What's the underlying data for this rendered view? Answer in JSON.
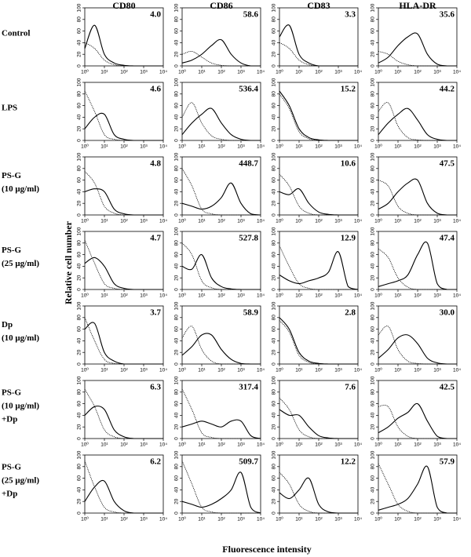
{
  "columns": [
    "CD80",
    "CD86",
    "CD83",
    "HLA-DR"
  ],
  "rows": [
    [
      "Control"
    ],
    [
      "LPS"
    ],
    [
      "PS-G",
      "(10 μg/ml)"
    ],
    [
      "PS-G",
      "(25 μg/ml)"
    ],
    [
      "Dp",
      "(10 μg/ml)"
    ],
    [
      "PS-G",
      "(10 μg/ml)",
      "+Dp"
    ],
    [
      "PS-G",
      "(25 μg/ml)",
      "+Dp"
    ]
  ],
  "y_label": "Relative cell number",
  "x_label": "Fluorescence intensity",
  "axes": {
    "log_x": true,
    "x": [
      1,
      3.16,
      10,
      31.6,
      100,
      316,
      1000,
      3160,
      10000
    ],
    "xlim": [
      1,
      10000
    ],
    "xticks": [
      {
        "value": 1,
        "label": "10⁰"
      },
      {
        "value": 10,
        "label": "10¹"
      },
      {
        "value": 100,
        "label": "10²"
      },
      {
        "value": 1000,
        "label": "10³"
      },
      {
        "value": 10000,
        "label": "10⁴"
      }
    ],
    "ylim": [
      0,
      100
    ],
    "yticks": [
      0,
      20,
      40,
      60,
      80,
      100
    ]
  },
  "chart_data": [
    {
      "type": "line",
      "annotation": "4.0",
      "series": [
        {
          "color": "#000",
          "dash": "solid",
          "values": [
            30,
            70,
            20,
            5,
            1,
            0,
            0,
            0,
            0
          ]
        },
        {
          "color": "#000",
          "dash": "dotted",
          "values": [
            40,
            30,
            10,
            2,
            0,
            0,
            0,
            0,
            0
          ]
        }
      ]
    },
    {
      "type": "line",
      "annotation": "58.6",
      "series": [
        {
          "color": "#000",
          "dash": "solid",
          "values": [
            5,
            10,
            20,
            35,
            45,
            20,
            5,
            0,
            0
          ]
        },
        {
          "color": "#000",
          "dash": "dotted",
          "values": [
            20,
            25,
            15,
            5,
            1,
            0,
            0,
            0,
            0
          ]
        }
      ]
    },
    {
      "type": "line",
      "annotation": "3.3",
      "series": [
        {
          "color": "#000",
          "dash": "solid",
          "values": [
            50,
            70,
            20,
            5,
            0,
            0,
            0,
            0,
            0
          ]
        },
        {
          "color": "#000",
          "dash": "dotted",
          "values": [
            40,
            30,
            10,
            2,
            0,
            0,
            0,
            0,
            0
          ]
        }
      ]
    },
    {
      "type": "line",
      "annotation": "35.6",
      "series": [
        {
          "color": "#000",
          "dash": "solid",
          "values": [
            5,
            15,
            35,
            50,
            55,
            20,
            3,
            0,
            0
          ]
        },
        {
          "color": "#000",
          "dash": "dotted",
          "values": [
            25,
            20,
            8,
            2,
            0,
            0,
            0,
            0,
            0
          ]
        }
      ]
    },
    {
      "type": "line",
      "annotation": "4.6",
      "series": [
        {
          "color": "#000",
          "dash": "solid",
          "values": [
            20,
            40,
            45,
            10,
            2,
            0,
            0,
            0,
            0
          ]
        },
        {
          "color": "#000",
          "dash": "dotted",
          "values": [
            85,
            50,
            10,
            2,
            0,
            0,
            0,
            0,
            0
          ]
        }
      ]
    },
    {
      "type": "line",
      "annotation": "536.4",
      "series": [
        {
          "color": "#000",
          "dash": "solid",
          "values": [
            10,
            30,
            45,
            55,
            30,
            10,
            2,
            0,
            0
          ]
        },
        {
          "color": "#000",
          "dash": "dotted",
          "values": [
            40,
            65,
            30,
            8,
            2,
            0,
            0,
            0,
            0
          ]
        }
      ]
    },
    {
      "type": "line",
      "annotation": "15.2",
      "series": [
        {
          "color": "#000",
          "dash": "solid",
          "values": [
            85,
            60,
            20,
            5,
            1,
            0,
            0,
            0,
            0
          ]
        },
        {
          "color": "#000",
          "dash": "dotted",
          "values": [
            80,
            55,
            15,
            3,
            0,
            0,
            0,
            0,
            0
          ]
        }
      ]
    },
    {
      "type": "line",
      "annotation": "44.2",
      "series": [
        {
          "color": "#000",
          "dash": "solid",
          "values": [
            10,
            30,
            45,
            55,
            35,
            10,
            2,
            0,
            0
          ]
        },
        {
          "color": "#000",
          "dash": "dotted",
          "values": [
            50,
            65,
            25,
            5,
            1,
            0,
            0,
            0,
            0
          ]
        }
      ]
    },
    {
      "type": "line",
      "annotation": "4.8",
      "series": [
        {
          "color": "#000",
          "dash": "solid",
          "values": [
            40,
            45,
            40,
            10,
            2,
            0,
            0,
            0,
            0
          ]
        },
        {
          "color": "#000",
          "dash": "dotted",
          "values": [
            75,
            55,
            15,
            3,
            0,
            0,
            0,
            0,
            0
          ]
        }
      ]
    },
    {
      "type": "line",
      "annotation": "448.7",
      "series": [
        {
          "color": "#000",
          "dash": "solid",
          "values": [
            20,
            15,
            10,
            15,
            30,
            55,
            20,
            2,
            0
          ]
        },
        {
          "color": "#000",
          "dash": "dotted",
          "values": [
            80,
            50,
            10,
            2,
            0,
            0,
            0,
            0,
            0
          ]
        }
      ]
    },
    {
      "type": "line",
      "annotation": "10.6",
      "series": [
        {
          "color": "#000",
          "dash": "solid",
          "values": [
            40,
            35,
            45,
            20,
            5,
            1,
            0,
            0,
            0
          ]
        },
        {
          "color": "#000",
          "dash": "dotted",
          "values": [
            70,
            50,
            15,
            3,
            0,
            0,
            0,
            0,
            0
          ]
        }
      ]
    },
    {
      "type": "line",
      "annotation": "47.5",
      "series": [
        {
          "color": "#000",
          "dash": "solid",
          "values": [
            10,
            20,
            40,
            55,
            60,
            20,
            3,
            0,
            0
          ]
        },
        {
          "color": "#000",
          "dash": "dotted",
          "values": [
            60,
            50,
            15,
            3,
            0,
            0,
            0,
            0,
            0
          ]
        }
      ]
    },
    {
      "type": "line",
      "annotation": "4.7",
      "series": [
        {
          "color": "#000",
          "dash": "solid",
          "values": [
            45,
            55,
            40,
            10,
            2,
            0,
            0,
            0,
            0
          ]
        },
        {
          "color": "#000",
          "dash": "dotted",
          "values": [
            85,
            45,
            10,
            2,
            0,
            0,
            0,
            0,
            0
          ]
        }
      ]
    },
    {
      "type": "line",
      "annotation": "527.8",
      "series": [
        {
          "color": "#000",
          "dash": "solid",
          "values": [
            40,
            35,
            60,
            20,
            5,
            1,
            0,
            0,
            0
          ]
        },
        {
          "color": "#000",
          "dash": "dotted",
          "values": [
            80,
            60,
            15,
            3,
            0,
            0,
            0,
            0,
            0
          ]
        }
      ]
    },
    {
      "type": "line",
      "annotation": "12.9",
      "series": [
        {
          "color": "#000",
          "dash": "solid",
          "values": [
            25,
            15,
            10,
            15,
            20,
            30,
            65,
            5,
            0
          ]
        },
        {
          "color": "#000",
          "dash": "dotted",
          "values": [
            75,
            40,
            10,
            2,
            0,
            0,
            0,
            0,
            0
          ]
        }
      ]
    },
    {
      "type": "line",
      "annotation": "47.4",
      "series": [
        {
          "color": "#000",
          "dash": "solid",
          "values": [
            5,
            10,
            15,
            25,
            60,
            80,
            10,
            0,
            0
          ]
        },
        {
          "color": "#000",
          "dash": "dotted",
          "values": [
            70,
            55,
            20,
            4,
            0,
            0,
            0,
            0,
            0
          ]
        }
      ]
    },
    {
      "type": "line",
      "annotation": "3.7",
      "series": [
        {
          "color": "#000",
          "dash": "solid",
          "values": [
            60,
            70,
            20,
            5,
            0,
            0,
            0,
            0,
            0
          ]
        },
        {
          "color": "#000",
          "dash": "dotted",
          "values": [
            80,
            40,
            8,
            1,
            0,
            0,
            0,
            0,
            0
          ]
        }
      ]
    },
    {
      "type": "line",
      "annotation": "58.9",
      "series": [
        {
          "color": "#000",
          "dash": "solid",
          "values": [
            15,
            30,
            50,
            50,
            25,
            8,
            1,
            0,
            0
          ]
        },
        {
          "color": "#000",
          "dash": "dotted",
          "values": [
            45,
            65,
            25,
            5,
            0,
            0,
            0,
            0,
            0
          ]
        }
      ]
    },
    {
      "type": "line",
      "annotation": "2.8",
      "series": [
        {
          "color": "#000",
          "dash": "solid",
          "values": [
            80,
            60,
            20,
            5,
            1,
            0,
            0,
            0,
            0
          ]
        },
        {
          "color": "#000",
          "dash": "dotted",
          "values": [
            75,
            55,
            15,
            3,
            0,
            0,
            0,
            0,
            0
          ]
        }
      ]
    },
    {
      "type": "line",
      "annotation": "30.0",
      "series": [
        {
          "color": "#000",
          "dash": "solid",
          "values": [
            10,
            25,
            45,
            50,
            35,
            10,
            2,
            0,
            0
          ]
        },
        {
          "color": "#000",
          "dash": "dotted",
          "values": [
            50,
            65,
            25,
            5,
            1,
            0,
            0,
            0,
            0
          ]
        }
      ]
    },
    {
      "type": "line",
      "annotation": "6.3",
      "series": [
        {
          "color": "#000",
          "dash": "solid",
          "values": [
            40,
            55,
            50,
            15,
            3,
            0,
            0,
            0,
            0
          ]
        },
        {
          "color": "#000",
          "dash": "dotted",
          "values": [
            85,
            55,
            15,
            3,
            0,
            0,
            0,
            0,
            0
          ]
        }
      ]
    },
    {
      "type": "line",
      "annotation": "317.4",
      "series": [
        {
          "color": "#000",
          "dash": "solid",
          "values": [
            20,
            25,
            30,
            25,
            20,
            30,
            30,
            5,
            0
          ]
        },
        {
          "color": "#000",
          "dash": "dotted",
          "values": [
            85,
            50,
            10,
            2,
            0,
            0,
            0,
            0,
            0
          ]
        }
      ]
    },
    {
      "type": "line",
      "annotation": "7.6",
      "series": [
        {
          "color": "#000",
          "dash": "solid",
          "values": [
            50,
            40,
            40,
            20,
            5,
            1,
            0,
            0,
            0
          ]
        },
        {
          "color": "#000",
          "dash": "dotted",
          "values": [
            70,
            50,
            15,
            3,
            0,
            0,
            0,
            0,
            0
          ]
        }
      ]
    },
    {
      "type": "line",
      "annotation": "42.5",
      "series": [
        {
          "color": "#000",
          "dash": "solid",
          "values": [
            10,
            20,
            35,
            45,
            60,
            30,
            4,
            0,
            0
          ]
        },
        {
          "color": "#000",
          "dash": "dotted",
          "values": [
            55,
            55,
            20,
            4,
            0,
            0,
            0,
            0,
            0
          ]
        }
      ]
    },
    {
      "type": "line",
      "annotation": "6.2",
      "series": [
        {
          "color": "#000",
          "dash": "solid",
          "values": [
            20,
            45,
            55,
            20,
            4,
            0,
            0,
            0,
            0
          ]
        },
        {
          "color": "#000",
          "dash": "dotted",
          "values": [
            90,
            45,
            10,
            2,
            0,
            0,
            0,
            0,
            0
          ]
        }
      ]
    },
    {
      "type": "line",
      "annotation": "509.7",
      "series": [
        {
          "color": "#000",
          "dash": "solid",
          "values": [
            20,
            15,
            10,
            15,
            25,
            40,
            70,
            10,
            0
          ]
        },
        {
          "color": "#000",
          "dash": "dotted",
          "values": [
            90,
            50,
            10,
            2,
            0,
            0,
            0,
            0,
            0
          ]
        }
      ]
    },
    {
      "type": "line",
      "annotation": "12.2",
      "series": [
        {
          "color": "#000",
          "dash": "solid",
          "values": [
            35,
            25,
            40,
            60,
            15,
            2,
            0,
            0,
            0
          ]
        },
        {
          "color": "#000",
          "dash": "dotted",
          "values": [
            70,
            50,
            15,
            3,
            0,
            0,
            0,
            0,
            0
          ]
        }
      ]
    },
    {
      "type": "line",
      "annotation": "57.9",
      "series": [
        {
          "color": "#000",
          "dash": "solid",
          "values": [
            5,
            10,
            15,
            25,
            50,
            80,
            10,
            0,
            0
          ]
        },
        {
          "color": "#000",
          "dash": "dotted",
          "values": [
            85,
            50,
            15,
            3,
            0,
            0,
            0,
            0,
            0
          ]
        }
      ]
    }
  ]
}
